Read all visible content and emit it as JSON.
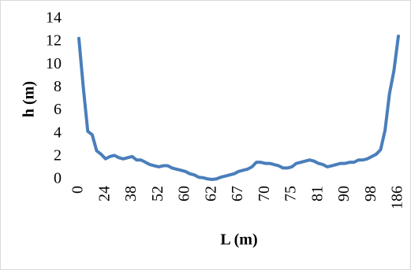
{
  "chart_data": {
    "type": "line",
    "x_label": "L (m)",
    "y_label": "h (m)",
    "categories": [
      "0",
      null,
      null,
      null,
      null,
      null,
      "24",
      null,
      null,
      null,
      null,
      null,
      "38",
      null,
      null,
      null,
      null,
      null,
      "52",
      null,
      null,
      null,
      null,
      null,
      "60",
      null,
      null,
      null,
      null,
      null,
      "62",
      null,
      null,
      null,
      null,
      null,
      "67",
      null,
      null,
      null,
      null,
      null,
      "70",
      null,
      null,
      null,
      null,
      null,
      "75",
      null,
      null,
      null,
      null,
      null,
      "81",
      null,
      null,
      null,
      null,
      null,
      "90",
      null,
      null,
      null,
      null,
      null,
      "98",
      null,
      null,
      null,
      null,
      null,
      "186"
    ],
    "series": [
      {
        "name": "h",
        "color": "#4a7ebb",
        "values": [
          12.3,
          8.0,
          4.2,
          3.9,
          2.5,
          2.2,
          1.8,
          2.0,
          2.1,
          1.9,
          1.8,
          1.9,
          2.0,
          1.7,
          1.7,
          1.5,
          1.3,
          1.2,
          1.1,
          1.2,
          1.2,
          1.0,
          0.9,
          0.8,
          0.7,
          0.5,
          0.4,
          0.2,
          0.15,
          0.05,
          0,
          0.05,
          0.2,
          0.3,
          0.4,
          0.5,
          0.7,
          0.8,
          0.9,
          1.1,
          1.5,
          1.5,
          1.4,
          1.4,
          1.3,
          1.2,
          1.0,
          1.0,
          1.1,
          1.4,
          1.5,
          1.6,
          1.7,
          1.6,
          1.4,
          1.3,
          1.1,
          1.2,
          1.3,
          1.4,
          1.4,
          1.5,
          1.5,
          1.7,
          1.7,
          1.8,
          2.0,
          2.2,
          2.6,
          4.3,
          7.5,
          9.5,
          12.5
        ]
      }
    ],
    "ylim": [
      0,
      14
    ],
    "yticks": [
      0,
      2,
      4,
      6,
      8,
      10,
      12,
      14
    ],
    "grid": false
  }
}
